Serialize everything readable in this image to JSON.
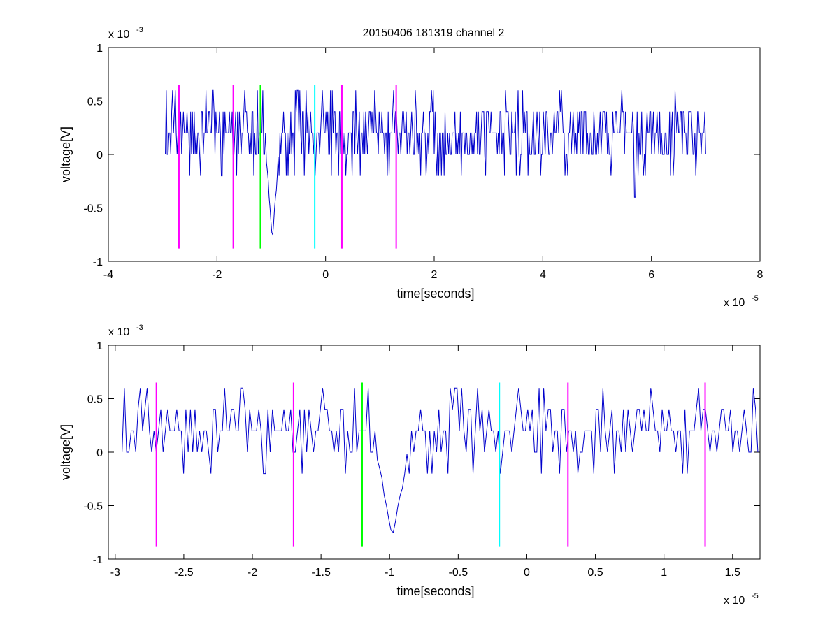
{
  "title": "20150406 181319 channel 2",
  "colors": {
    "signal": "#0000cc",
    "magenta": "#ff00ff",
    "green": "#00ff00",
    "cyan": "#00ffff",
    "axis": "#000000"
  },
  "chart_data": [
    {
      "type": "line",
      "title": "20150406 181319 channel 2",
      "xlabel": "time[seconds]",
      "ylabel": "voltage[V]",
      "x_exponent_label": "x 10",
      "x_exponent": "-5",
      "y_exponent_label": "x 10",
      "y_exponent": "-3",
      "xlim": [
        -4e-05,
        8e-05
      ],
      "ylim": [
        -0.001,
        0.001
      ],
      "xticks": [
        -4e-05,
        -2e-05,
        0,
        2e-05,
        4e-05,
        6e-05,
        8e-05
      ],
      "xtick_labels": [
        "-4",
        "-2",
        "0",
        "2",
        "4",
        "6",
        "8"
      ],
      "yticks": [
        -0.001,
        -0.0005,
        0,
        0.0005,
        0.001
      ],
      "ytick_labels": [
        "-1",
        "-0.5",
        "0",
        "0.5",
        "1"
      ],
      "grid": false,
      "series": [
        {
          "color": "#0000cc",
          "x_start": -2.95e-05,
          "x_end": 7e-05,
          "sample_count": 600,
          "baseline": 0.0002,
          "step": 0.0002,
          "dip": {
            "x": -9.8e-06,
            "min": -0.0008
          }
        }
      ],
      "markers": [
        {
          "x": -2.7e-05,
          "y_low": -0.00088,
          "y_high": 0.00065,
          "color": "#ff00ff"
        },
        {
          "x": -1.7e-05,
          "y_low": -0.00088,
          "y_high": 0.00065,
          "color": "#ff00ff"
        },
        {
          "x": -1.2e-05,
          "y_low": -0.00088,
          "y_high": 0.00065,
          "color": "#00ff00"
        },
        {
          "x": -2e-06,
          "y_low": -0.00088,
          "y_high": 0.00065,
          "color": "#00ffff"
        },
        {
          "x": 3e-06,
          "y_low": -0.00088,
          "y_high": 0.00065,
          "color": "#ff00ff"
        },
        {
          "x": 1.3e-05,
          "y_low": -0.00088,
          "y_high": 0.00065,
          "color": "#ff00ff"
        }
      ]
    },
    {
      "type": "line",
      "title": "",
      "xlabel": "time[seconds]",
      "ylabel": "voltage[V]",
      "x_exponent_label": "x 10",
      "x_exponent": "-5",
      "y_exponent_label": "x 10",
      "y_exponent": "-3",
      "xlim": [
        -3.05e-05,
        1.7e-05
      ],
      "ylim": [
        -0.001,
        0.001
      ],
      "xticks": [
        -3e-05,
        -2.5e-05,
        -2e-05,
        -1.5e-05,
        -1e-05,
        -5e-06,
        0,
        5e-06,
        1e-05,
        1.5e-05
      ],
      "xtick_labels": [
        "-3",
        "-2.5",
        "-2",
        "-1.5",
        "-1",
        "-0.5",
        "0",
        "0.5",
        "1",
        "1.5"
      ],
      "yticks": [
        -0.001,
        -0.0005,
        0,
        0.0005,
        0.001
      ],
      "ytick_labels": [
        "-1",
        "-0.5",
        "0",
        "0.5",
        "1"
      ],
      "grid": false,
      "series": [
        {
          "color": "#0000cc",
          "x_start": -2.95e-05,
          "x_end": 1.7e-05,
          "sample_count": 460,
          "baseline": 0.0002,
          "step": 0.0002,
          "dip": {
            "x": -9.8e-06,
            "min": -0.0008
          }
        }
      ],
      "markers": [
        {
          "x": -2.7e-05,
          "y_low": -0.00088,
          "y_high": 0.00065,
          "color": "#ff00ff"
        },
        {
          "x": -1.7e-05,
          "y_low": -0.00088,
          "y_high": 0.00065,
          "color": "#ff00ff"
        },
        {
          "x": -1.2e-05,
          "y_low": -0.00088,
          "y_high": 0.00065,
          "color": "#00ff00"
        },
        {
          "x": -2e-06,
          "y_low": -0.00088,
          "y_high": 0.00065,
          "color": "#00ffff"
        },
        {
          "x": 3e-06,
          "y_low": -0.00088,
          "y_high": 0.00065,
          "color": "#ff00ff"
        },
        {
          "x": 1.3e-05,
          "y_low": -0.00088,
          "y_high": 0.00065,
          "color": "#ff00ff"
        }
      ]
    }
  ]
}
